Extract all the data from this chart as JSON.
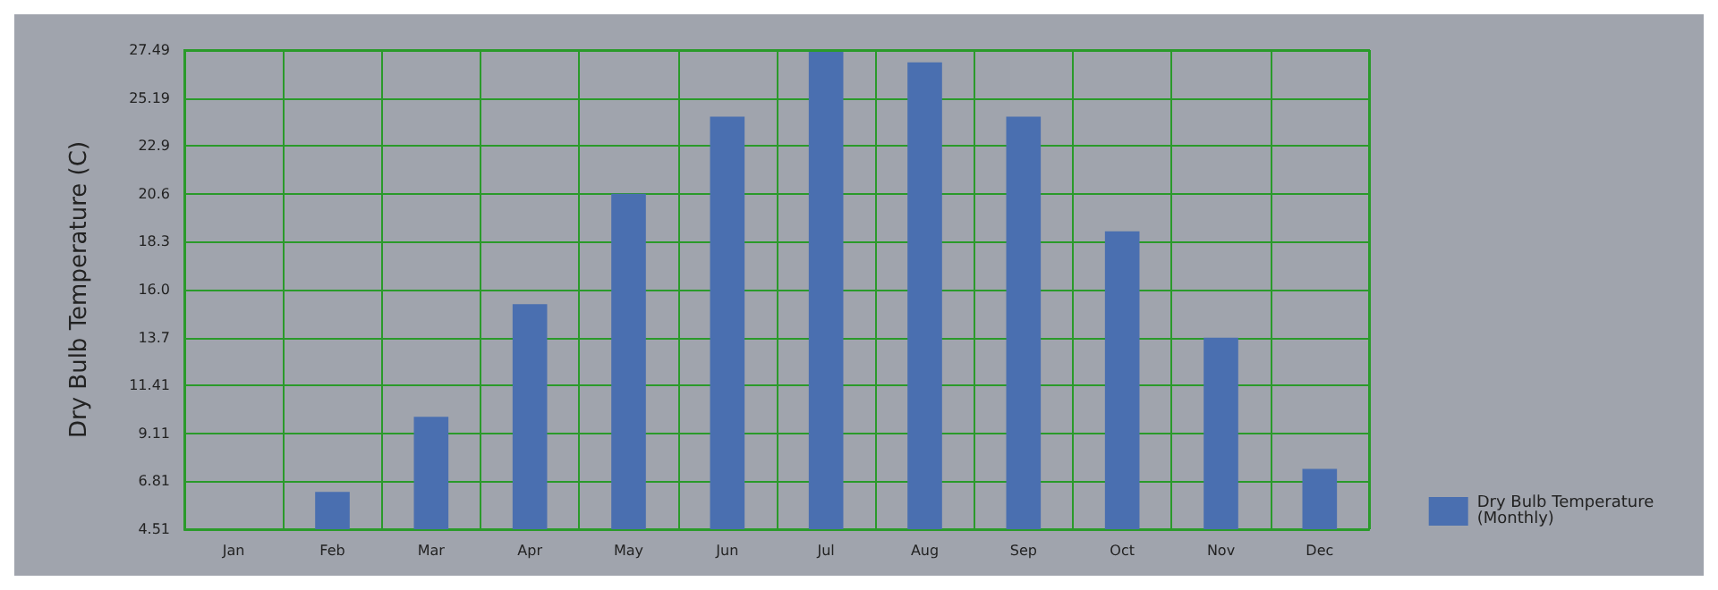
{
  "chart_data": {
    "type": "bar",
    "ylabel": "Dry Bulb Temperature (C)",
    "categories": [
      "Jan",
      "Feb",
      "Mar",
      "Apr",
      "May",
      "Jun",
      "Jul",
      "Aug",
      "Sep",
      "Oct",
      "Nov",
      "Dec"
    ],
    "series": [
      {
        "name": "Dry Bulb Temperature (Monthly)",
        "color": "#4a6fb0",
        "values": [
          null,
          6.3,
          9.9,
          15.3,
          20.6,
          24.3,
          27.4,
          26.9,
          24.3,
          18.8,
          13.7,
          7.4
        ]
      }
    ],
    "ylim": [
      4.51,
      27.49
    ],
    "yticks": [
      4.51,
      6.81,
      9.11,
      11.41,
      13.7,
      {
        "value": 16,
        "label": "16.0"
      },
      18.3,
      20.6,
      22.9,
      25.19,
      27.49
    ],
    "grid": true,
    "legend": "bottom right"
  }
}
